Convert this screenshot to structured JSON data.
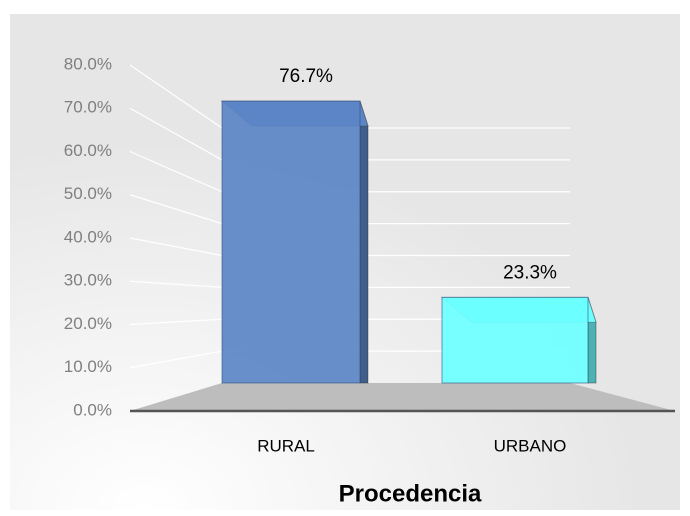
{
  "chart_data": {
    "type": "bar3d",
    "categories": [
      "RURAL",
      "URBANO"
    ],
    "values": [
      76.7,
      23.3
    ],
    "value_labels": [
      "76.7%",
      "23.3%"
    ],
    "colors": [
      "#5b86c5",
      "#6cffff"
    ],
    "ylim": [
      0,
      80
    ],
    "yticks": [
      {
        "value": 0,
        "label": "0.0%"
      },
      {
        "value": 10,
        "label": "10.0%"
      },
      {
        "value": 20,
        "label": "20.0%"
      },
      {
        "value": 30,
        "label": "30.0%"
      },
      {
        "value": 40,
        "label": "40.0%"
      },
      {
        "value": 50,
        "label": "50.0%"
      },
      {
        "value": 60,
        "label": "60.0%"
      },
      {
        "value": 70,
        "label": "70.0%"
      },
      {
        "value": 80,
        "label": "80.0%"
      }
    ],
    "xlabel": "Procedencia",
    "grid": true
  }
}
